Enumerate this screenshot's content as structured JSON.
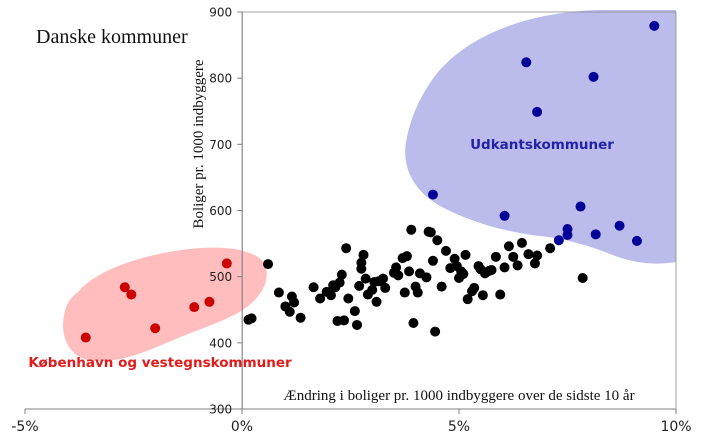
{
  "chart_data": {
    "type": "scatter",
    "title": "Danske kommuner",
    "xlabel": "Ændring i boliger pr. 1000 indbyggere over de sidste 10 år",
    "ylabel": "Boliger pr. 1000 indbyggere",
    "xlim": [
      -5,
      10
    ],
    "ylim": [
      300,
      900
    ],
    "x_ticks": [
      -5,
      0,
      5,
      10
    ],
    "x_tick_labels": [
      "-5%",
      "0%",
      "5%",
      "10%"
    ],
    "y_ticks": [
      300,
      400,
      500,
      600,
      700,
      800,
      900
    ],
    "y_tick_labels": [
      "300",
      "400",
      "500",
      "600",
      "700",
      "800",
      "900"
    ],
    "grid": false,
    "colors": {
      "copenhagen": "#cc0000",
      "copenhagen_region": "#ffbdbd",
      "copenhagen_label": "#e31b1b",
      "outskirts": "#000099",
      "outskirts_region": "#bcbcec",
      "outskirts_label": "#2222aa",
      "other": "#000000"
    },
    "regions": [
      {
        "label": "Udkantskommuner",
        "color_key": "outskirts"
      },
      {
        "label": "København og vestegnskommuner",
        "color_key": "copenhagen"
      }
    ],
    "series": [
      {
        "color_key": "copenhagen",
        "points": [
          [
            -3.6,
            408
          ],
          [
            -2.7,
            484
          ],
          [
            -2.55,
            473
          ],
          [
            -2.0,
            422
          ],
          [
            -1.1,
            454
          ],
          [
            -0.75,
            462
          ],
          [
            -0.35,
            520
          ]
        ]
      },
      {
        "color_key": "outskirts",
        "points": [
          [
            4.4,
            624
          ],
          [
            6.05,
            592
          ],
          [
            6.55,
            824
          ],
          [
            6.8,
            749
          ],
          [
            7.3,
            555
          ],
          [
            7.5,
            563
          ],
          [
            7.5,
            572
          ],
          [
            7.8,
            606
          ],
          [
            8.1,
            802
          ],
          [
            8.15,
            564
          ],
          [
            8.7,
            577
          ],
          [
            9.1,
            554
          ],
          [
            9.5,
            879
          ]
        ]
      },
      {
        "color_key": "other",
        "points": [
          [
            0.15,
            435
          ],
          [
            0.22,
            437
          ],
          [
            0.6,
            519
          ],
          [
            0.85,
            476
          ],
          [
            1.0,
            455
          ],
          [
            1.1,
            447
          ],
          [
            1.15,
            470
          ],
          [
            1.2,
            461
          ],
          [
            1.35,
            438
          ],
          [
            1.65,
            484
          ],
          [
            1.8,
            467
          ],
          [
            1.95,
            477
          ],
          [
            2.05,
            472
          ],
          [
            2.1,
            487
          ],
          [
            2.15,
            484
          ],
          [
            2.2,
            433
          ],
          [
            2.25,
            491
          ],
          [
            2.3,
            503
          ],
          [
            2.35,
            434
          ],
          [
            2.4,
            543
          ],
          [
            2.45,
            467
          ],
          [
            2.6,
            448
          ],
          [
            2.65,
            427
          ],
          [
            2.7,
            486
          ],
          [
            2.75,
            512
          ],
          [
            2.75,
            521
          ],
          [
            2.8,
            533
          ],
          [
            2.85,
            497
          ],
          [
            2.9,
            473
          ],
          [
            3.0,
            480
          ],
          [
            3.05,
            492
          ],
          [
            3.1,
            462
          ],
          [
            3.15,
            493
          ],
          [
            3.25,
            497
          ],
          [
            3.3,
            483
          ],
          [
            3.5,
            506
          ],
          [
            3.55,
            514
          ],
          [
            3.6,
            502
          ],
          [
            3.7,
            528
          ],
          [
            3.75,
            476
          ],
          [
            3.8,
            531
          ],
          [
            3.85,
            508
          ],
          [
            3.9,
            571
          ],
          [
            3.95,
            430
          ],
          [
            4.0,
            485
          ],
          [
            4.05,
            476
          ],
          [
            4.1,
            505
          ],
          [
            4.25,
            499
          ],
          [
            4.3,
            568
          ],
          [
            4.35,
            567
          ],
          [
            4.4,
            524
          ],
          [
            4.45,
            417
          ],
          [
            4.5,
            555
          ],
          [
            4.6,
            485
          ],
          [
            4.7,
            539
          ],
          [
            4.8,
            513
          ],
          [
            4.9,
            527
          ],
          [
            4.95,
            516
          ],
          [
            5.0,
            498
          ],
          [
            5.05,
            508
          ],
          [
            5.1,
            504
          ],
          [
            5.15,
            533
          ],
          [
            5.2,
            466
          ],
          [
            5.3,
            478
          ],
          [
            5.35,
            483
          ],
          [
            5.45,
            516
          ],
          [
            5.5,
            511
          ],
          [
            5.55,
            472
          ],
          [
            5.6,
            505
          ],
          [
            5.7,
            509
          ],
          [
            5.75,
            510
          ],
          [
            5.85,
            530
          ],
          [
            5.95,
            473
          ],
          [
            6.05,
            514
          ],
          [
            6.15,
            546
          ],
          [
            6.25,
            530
          ],
          [
            6.35,
            517
          ],
          [
            6.45,
            551
          ],
          [
            6.6,
            534
          ],
          [
            6.75,
            520
          ],
          [
            6.8,
            532
          ],
          [
            7.1,
            543
          ],
          [
            7.85,
            498
          ]
        ]
      }
    ]
  }
}
